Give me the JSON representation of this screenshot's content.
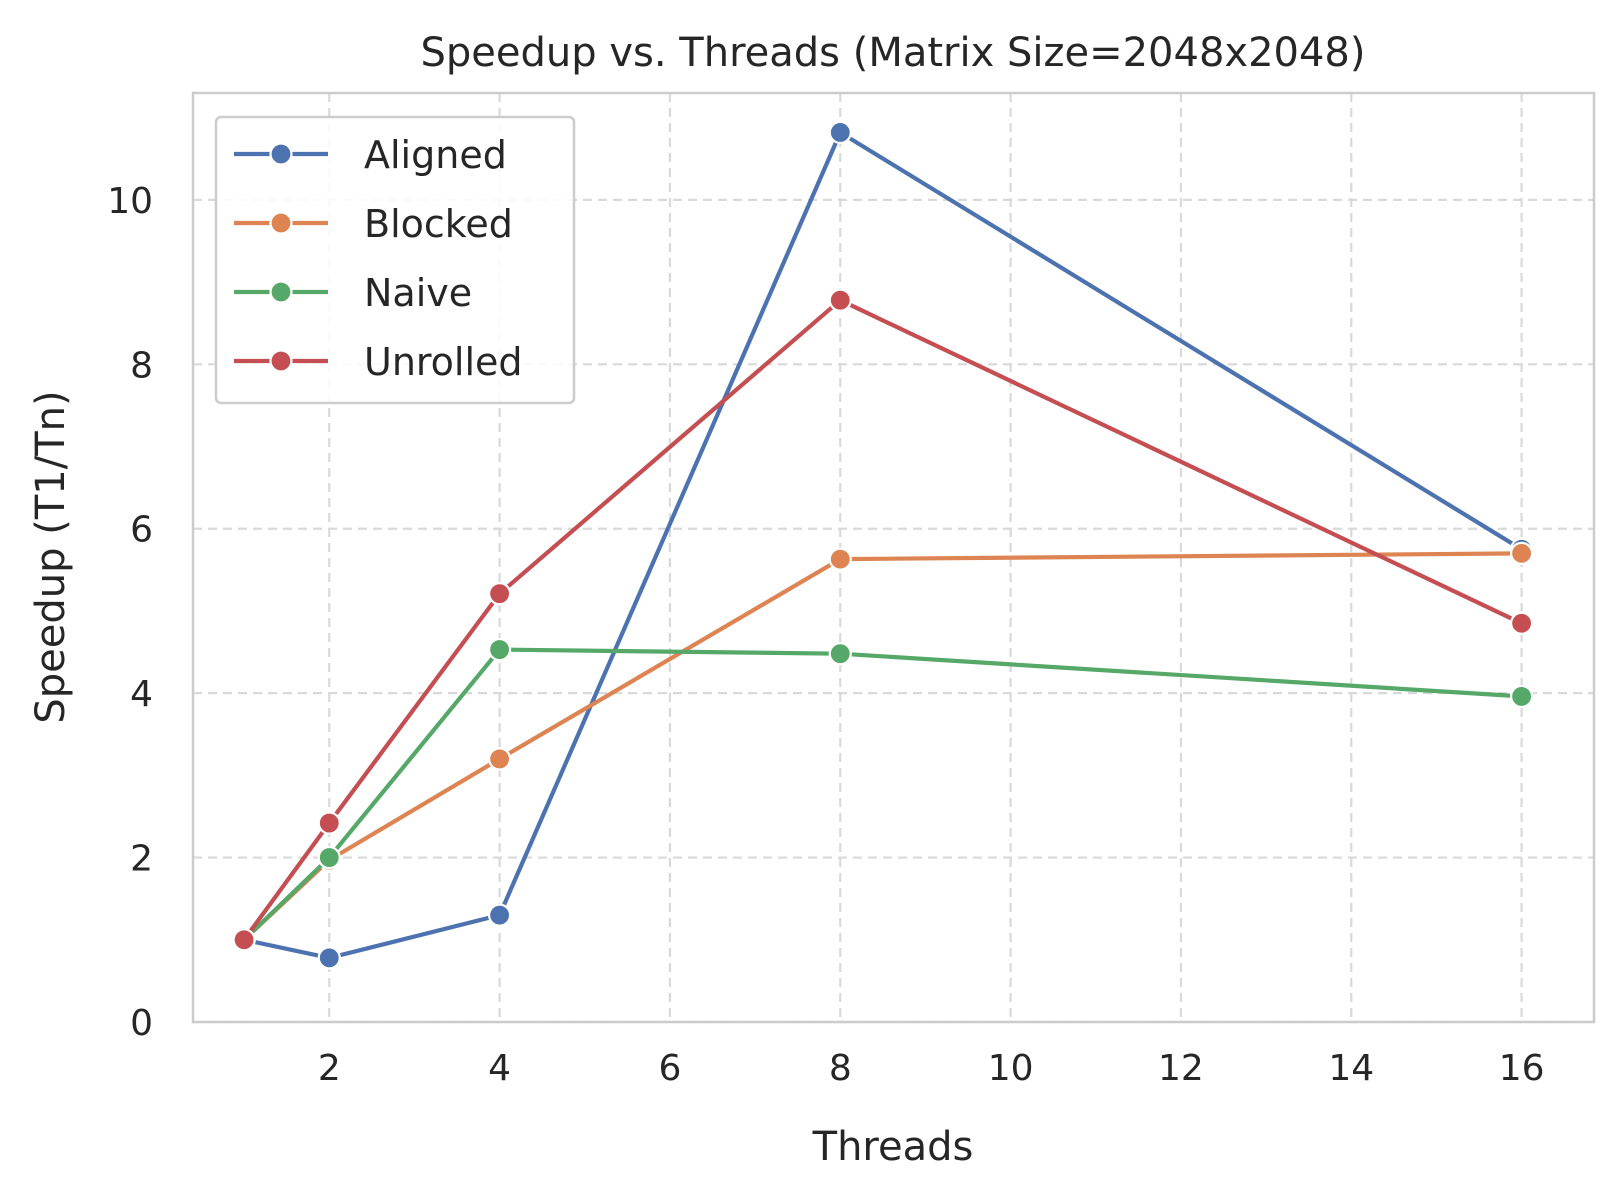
{
  "chart_data": {
    "type": "line",
    "title": "Speedup vs. Threads (Matrix Size=2048x2048)",
    "xlabel": "Threads",
    "ylabel": "Speedup (T1/Tn)",
    "xlim": [
      0.4,
      16.85
    ],
    "ylim": [
      0,
      11.3
    ],
    "xticks": [
      2,
      4,
      6,
      8,
      10,
      12,
      14,
      16
    ],
    "yticks": [
      0,
      2,
      4,
      6,
      8,
      10
    ],
    "grid": true,
    "legend_position": "upper-left",
    "x": [
      1,
      2,
      4,
      8,
      16
    ],
    "series": [
      {
        "name": "Aligned",
        "color": "#4c72b0",
        "values": [
          1.0,
          0.78,
          1.3,
          10.82,
          5.75
        ]
      },
      {
        "name": "Blocked",
        "color": "#dd8452",
        "values": [
          1.0,
          1.97,
          3.2,
          5.63,
          5.7
        ]
      },
      {
        "name": "Naive",
        "color": "#55a868",
        "values": [
          1.0,
          2.0,
          4.53,
          4.48,
          3.96
        ]
      },
      {
        "name": "Unrolled",
        "color": "#c44e52",
        "values": [
          1.0,
          2.42,
          5.21,
          8.78,
          4.85
        ]
      }
    ]
  }
}
